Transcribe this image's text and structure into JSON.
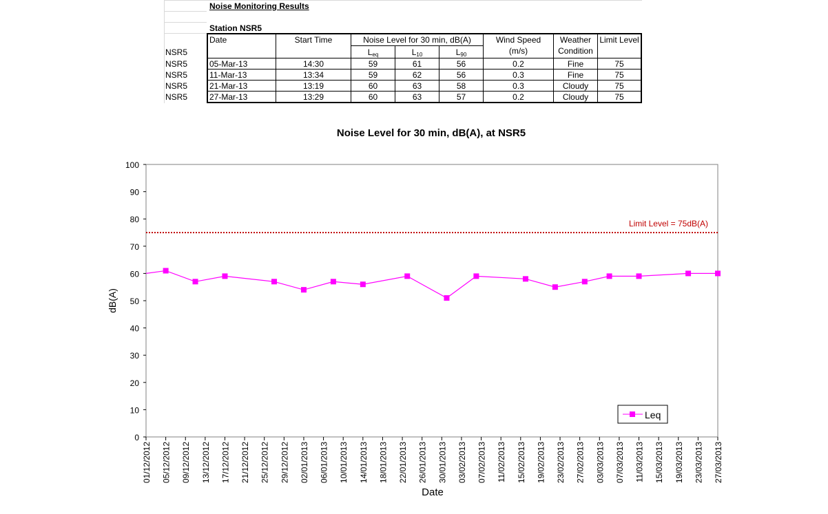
{
  "sheet": {
    "title": "Noise Monitoring Results",
    "station": "Station NSR5",
    "headers": {
      "date": "Date",
      "start_time": "Start Time",
      "noise_level": "Noise Level for 30 min, dB(A)",
      "leq": "L",
      "leq_sub": "eq",
      "l10": "L",
      "l10_sub": "10",
      "l90": "L",
      "l90_sub": "90",
      "wind_speed": "Wind Speed",
      "wind_unit": "(m/s)",
      "weather1": "Weather",
      "weather2": "Condition",
      "limit": "Limit Level"
    },
    "row_label_header": "NSR5",
    "rows": [
      {
        "station": "NSR5",
        "date": "05-Mar-13",
        "time": "14:30",
        "leq": "59",
        "l10": "61",
        "l90": "56",
        "wind": "0.2",
        "weather": "Fine",
        "limit": "75"
      },
      {
        "station": "NSR5",
        "date": "11-Mar-13",
        "time": "13:34",
        "leq": "59",
        "l10": "62",
        "l90": "56",
        "wind": "0.3",
        "weather": "Fine",
        "limit": "75"
      },
      {
        "station": "NSR5",
        "date": "21-Mar-13",
        "time": "13:19",
        "leq": "60",
        "l10": "63",
        "l90": "58",
        "wind": "0.3",
        "weather": "Cloudy",
        "limit": "75"
      },
      {
        "station": "NSR5",
        "date": "27-Mar-13",
        "time": "13:29",
        "leq": "60",
        "l10": "63",
        "l90": "57",
        "wind": "0.2",
        "weather": "Cloudy",
        "limit": "75"
      }
    ]
  },
  "chart_data": {
    "type": "line",
    "title": "Noise Level for 30 min, dB(A), at NSR5",
    "xlabel": "Date",
    "ylabel": "dB(A)",
    "ylim": [
      0,
      100
    ],
    "yticks": [
      0,
      10,
      20,
      30,
      40,
      50,
      60,
      70,
      80,
      90,
      100
    ],
    "xlim": [
      "2012-12-01",
      "2013-03-27"
    ],
    "xticks": [
      "01/12/2012",
      "05/12/2012",
      "09/12/2012",
      "13/12/2012",
      "17/12/2012",
      "21/12/2012",
      "25/12/2012",
      "29/12/2012",
      "02/01/2013",
      "06/01/2013",
      "10/01/2013",
      "14/01/2013",
      "18/01/2013",
      "22/01/2013",
      "26/01/2013",
      "30/01/2013",
      "03/02/2013",
      "07/02/2013",
      "11/02/2013",
      "15/02/2013",
      "19/02/2013",
      "23/02/2013",
      "27/02/2013",
      "03/03/2013",
      "07/03/2013",
      "11/03/2013",
      "15/03/2013",
      "19/03/2013",
      "23/03/2013",
      "27/03/2013"
    ],
    "grid": "horizontal",
    "legend_position": "bottom-right",
    "limit_line": {
      "value": 75,
      "label": "Limit Level = 75dB(A)",
      "color": "#c00000"
    },
    "series": [
      {
        "name": "Leq",
        "color": "#ff00ff",
        "x": [
          "2012-11-30",
          "2012-12-05",
          "2012-12-11",
          "2012-12-17",
          "2012-12-27",
          "2013-01-02",
          "2013-01-08",
          "2013-01-14",
          "2013-01-23",
          "2013-01-31",
          "2013-02-06",
          "2013-02-16",
          "2013-02-22",
          "2013-02-28",
          "2013-03-05",
          "2013-03-11",
          "2013-03-21",
          "2013-03-27"
        ],
        "y": [
          60,
          61,
          57,
          59,
          57,
          54,
          57,
          56,
          59,
          51,
          59,
          58,
          55,
          57,
          59,
          59,
          60,
          60
        ]
      }
    ]
  }
}
